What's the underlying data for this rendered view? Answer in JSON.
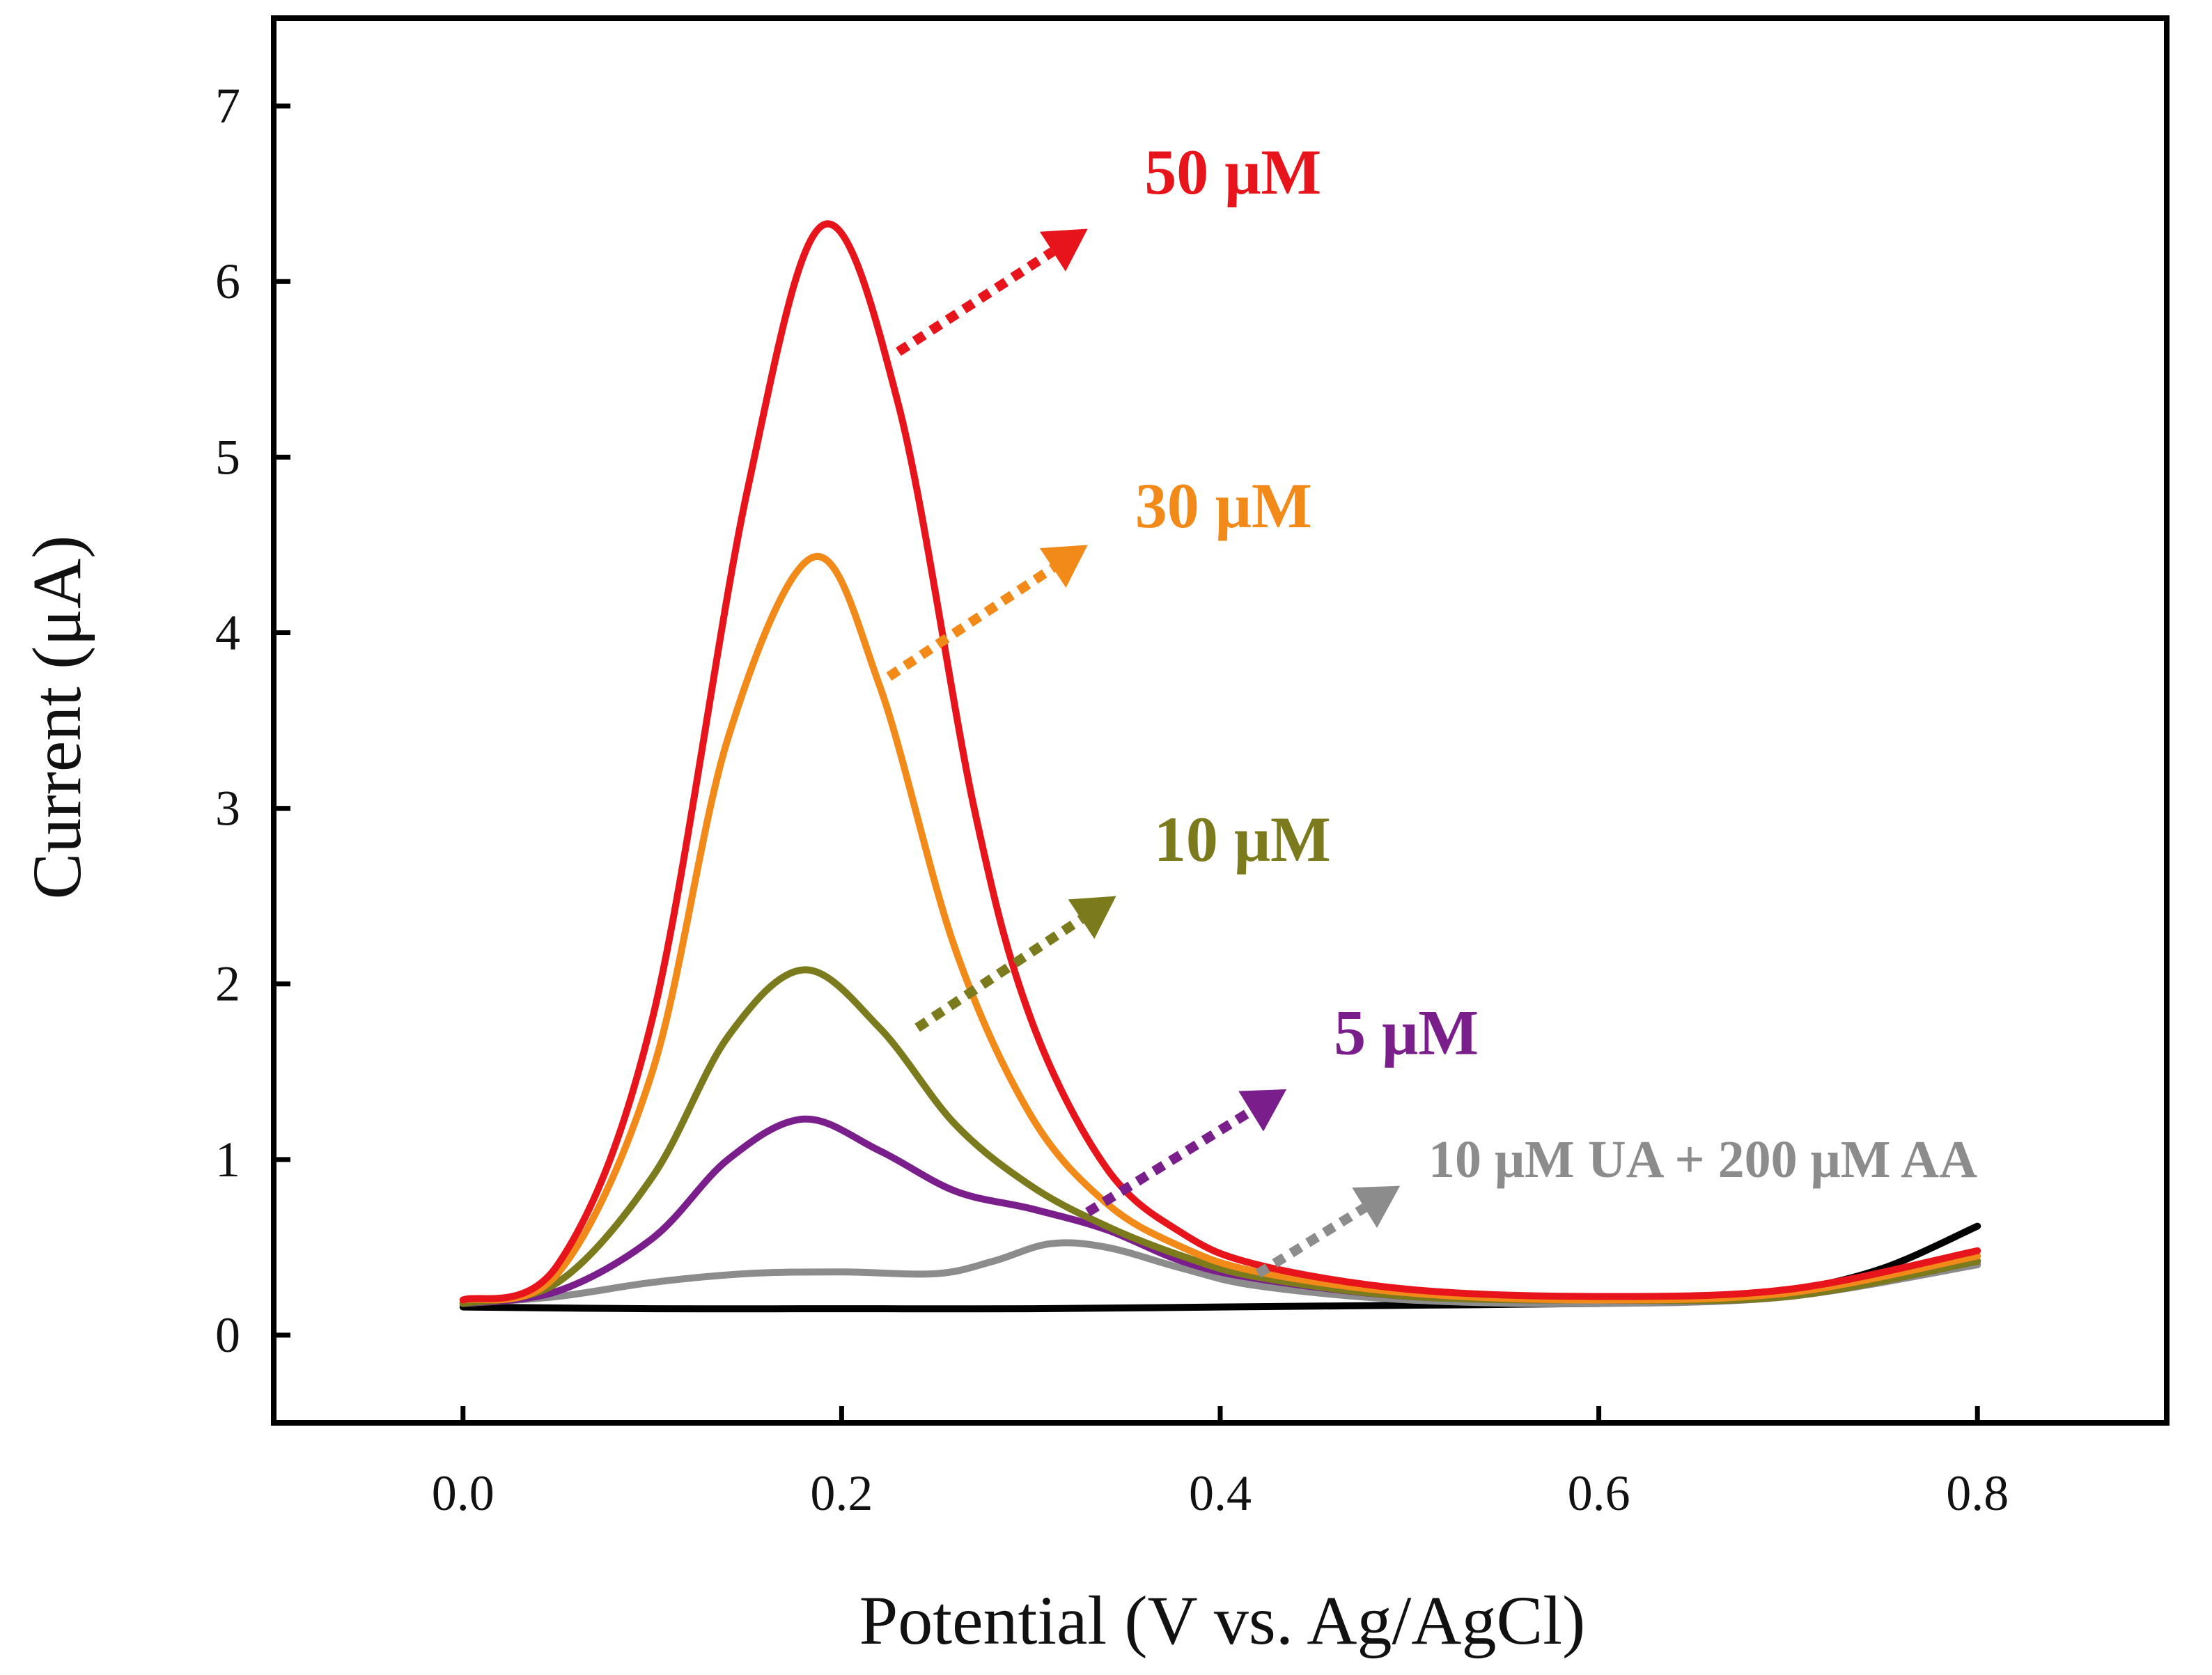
{
  "chart_data": {
    "type": "line",
    "title": "",
    "xlabel": "Potential (V vs. Ag/AgCl)",
    "ylabel": "Current (μA)",
    "xlim": [
      -0.1,
      0.9
    ],
    "ylim": [
      -0.5,
      7.5
    ],
    "xticks": [
      0.0,
      0.2,
      0.4,
      0.6,
      0.8
    ],
    "xtick_labels": [
      "0.0",
      "0.2",
      "0.4",
      "0.6",
      "0.8"
    ],
    "yticks": [
      0,
      1,
      2,
      3,
      4,
      5,
      6,
      7
    ],
    "ytick_labels": [
      "0",
      "1",
      "2",
      "3",
      "4",
      "5",
      "6",
      "7"
    ],
    "grid": false,
    "legend": "none",
    "series": [
      {
        "color": "#000000",
        "x": [
          0.0,
          0.1,
          0.2,
          0.3,
          0.4,
          0.5,
          0.6,
          0.65,
          0.7,
          0.75,
          0.8
        ],
        "y": [
          0.16,
          0.15,
          0.15,
          0.15,
          0.16,
          0.17,
          0.18,
          0.2,
          0.25,
          0.38,
          0.62
        ]
      },
      {
        "color": "#8c8c8c",
        "x": [
          0.0,
          0.05,
          0.1,
          0.15,
          0.2,
          0.25,
          0.28,
          0.31,
          0.34,
          0.38,
          0.42,
          0.5,
          0.6,
          0.7,
          0.8
        ],
        "y": [
          0.18,
          0.22,
          0.3,
          0.35,
          0.36,
          0.35,
          0.42,
          0.52,
          0.5,
          0.38,
          0.28,
          0.2,
          0.18,
          0.22,
          0.4
        ]
      },
      {
        "color": "#7a1e8c",
        "x": [
          0.0,
          0.05,
          0.1,
          0.14,
          0.18,
          0.22,
          0.26,
          0.3,
          0.34,
          0.38,
          0.42,
          0.5,
          0.6,
          0.7,
          0.8
        ],
        "y": [
          0.18,
          0.25,
          0.55,
          1.0,
          1.23,
          1.05,
          0.82,
          0.72,
          0.6,
          0.42,
          0.32,
          0.22,
          0.2,
          0.22,
          0.42
        ]
      },
      {
        "color": "#7b7a1c",
        "x": [
          0.0,
          0.05,
          0.1,
          0.14,
          0.18,
          0.22,
          0.26,
          0.3,
          0.34,
          0.38,
          0.42,
          0.5,
          0.6,
          0.7,
          0.8
        ],
        "y": [
          0.18,
          0.3,
          0.9,
          1.7,
          2.08,
          1.75,
          1.2,
          0.85,
          0.62,
          0.45,
          0.33,
          0.22,
          0.2,
          0.22,
          0.42
        ]
      },
      {
        "color": "#f28a1a",
        "x": [
          0.0,
          0.05,
          0.1,
          0.14,
          0.185,
          0.22,
          0.26,
          0.3,
          0.34,
          0.38,
          0.42,
          0.5,
          0.6,
          0.7,
          0.8
        ],
        "y": [
          0.2,
          0.35,
          1.5,
          3.4,
          4.43,
          3.7,
          2.2,
          1.25,
          0.75,
          0.5,
          0.36,
          0.24,
          0.2,
          0.24,
          0.45
        ]
      },
      {
        "color": "#e8141c",
        "x": [
          0.0,
          0.05,
          0.1,
          0.15,
          0.19,
          0.23,
          0.27,
          0.3,
          0.34,
          0.38,
          0.42,
          0.5,
          0.6,
          0.7,
          0.8
        ],
        "y": [
          0.2,
          0.4,
          1.8,
          4.8,
          6.32,
          5.3,
          3.0,
          1.8,
          0.95,
          0.58,
          0.4,
          0.26,
          0.22,
          0.26,
          0.48
        ]
      }
    ],
    "annotations": [
      {
        "text": "50 μM",
        "color": "#e8141c",
        "x": 0.36,
        "y": 6.5,
        "arrow_from": [
          0.23,
          5.6
        ],
        "arrow_to": [
          0.33,
          6.3
        ]
      },
      {
        "text": "30 μM",
        "color": "#f28a1a",
        "x": 0.355,
        "y": 4.6,
        "arrow_from": [
          0.225,
          3.75
        ],
        "arrow_to": [
          0.33,
          4.5
        ]
      },
      {
        "text": "10 μM",
        "color": "#7b7a1c",
        "x": 0.365,
        "y": 2.7,
        "arrow_from": [
          0.24,
          1.75
        ],
        "arrow_to": [
          0.345,
          2.5
        ]
      },
      {
        "text": "5 μM",
        "color": "#7a1e8c",
        "x": 0.46,
        "y": 1.6,
        "arrow_from": [
          0.33,
          0.7
        ],
        "arrow_to": [
          0.435,
          1.4
        ]
      },
      {
        "text": "10 μM UA + 200 μM AA",
        "color": "#8c8c8c",
        "x": 0.51,
        "y": 0.9,
        "arrow_from": [
          0.42,
          0.35
        ],
        "arrow_to": [
          0.495,
          0.85
        ]
      }
    ]
  }
}
